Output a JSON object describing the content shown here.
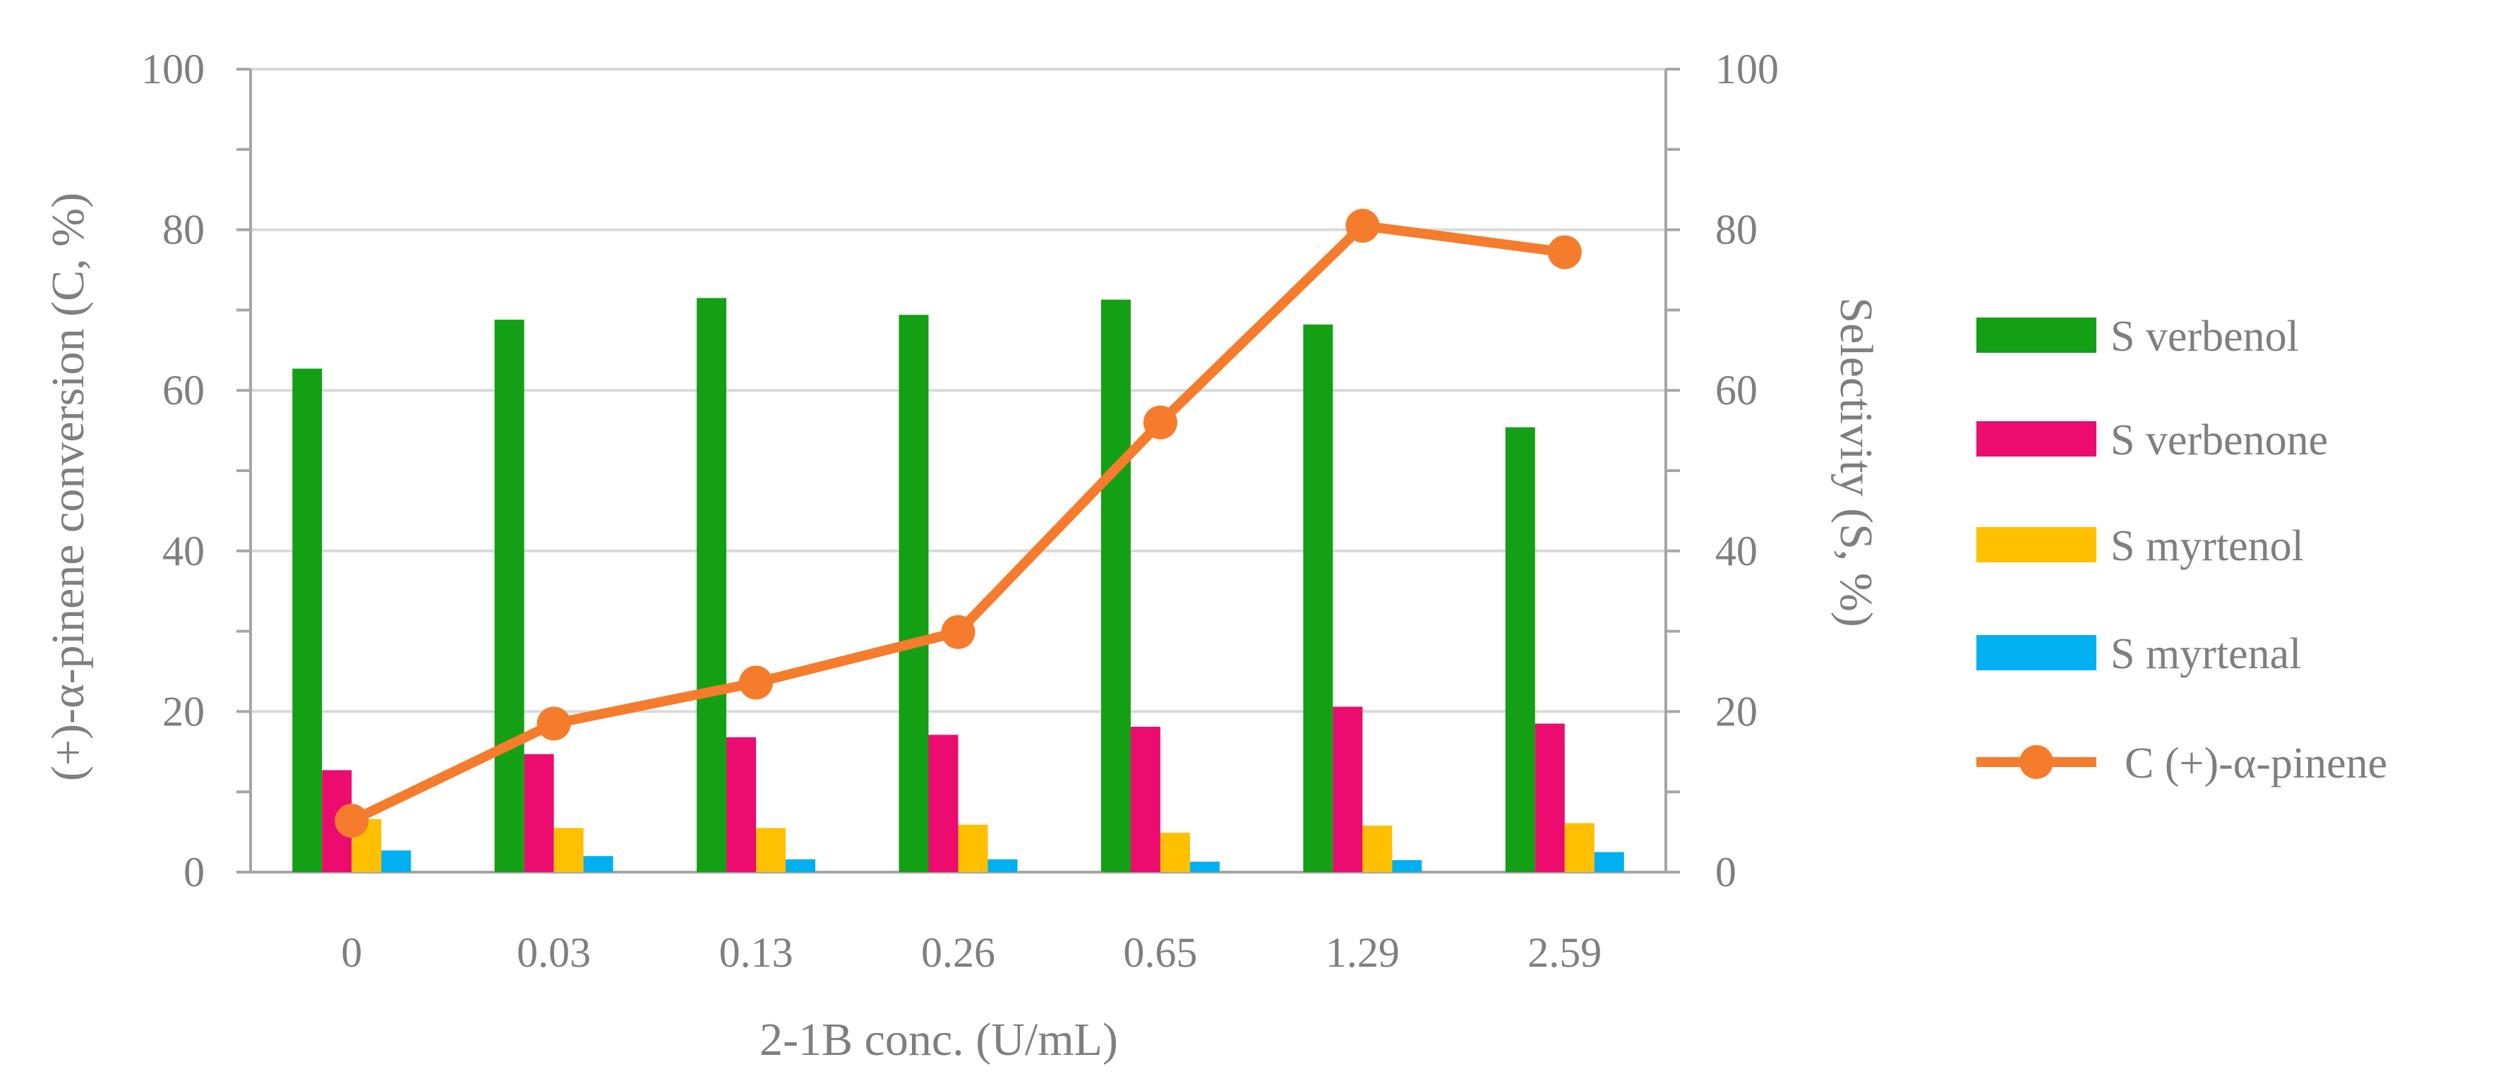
{
  "chart_data": {
    "type": "bar+line",
    "categories": [
      "0",
      "0.03",
      "0.13",
      "0.26",
      "0.65",
      "1.29",
      "2.59"
    ],
    "bar_series": [
      {
        "name": "S verbenol",
        "color": "#14a014",
        "values": [
          62.7,
          68.8,
          71.5,
          69.4,
          71.3,
          68.2,
          55.4
        ]
      },
      {
        "name": "S verbenone",
        "color": "#ec0b6e",
        "values": [
          12.7,
          14.7,
          16.8,
          17.1,
          18.1,
          20.6,
          18.5
        ]
      },
      {
        "name": "S myrtenol",
        "color": "#ffc000",
        "values": [
          6.6,
          5.5,
          5.5,
          5.9,
          4.9,
          5.8,
          6.1
        ]
      },
      {
        "name": "S myrtenal",
        "color": "#00b0f0",
        "values": [
          2.7,
          2.0,
          1.6,
          1.6,
          1.3,
          1.5,
          2.5
        ]
      }
    ],
    "line_series": {
      "name": "C (+)-α-pinene",
      "color": "#f57c2c",
      "values": [
        6.4,
        18.5,
        23.6,
        29.9,
        56.0,
        80.5,
        77.2
      ]
    },
    "xlabel": "2-1B conc. (U/mL)",
    "ylabel_left": "(+)-α-pinene conversion (C, %)",
    "ylabel_right": "Selectivity (S, %)",
    "ylim": [
      0,
      100
    ],
    "yticks": [
      "0",
      "20",
      "40",
      "60",
      "80",
      "100"
    ],
    "legend": {
      "position": "right"
    },
    "grid": true
  }
}
